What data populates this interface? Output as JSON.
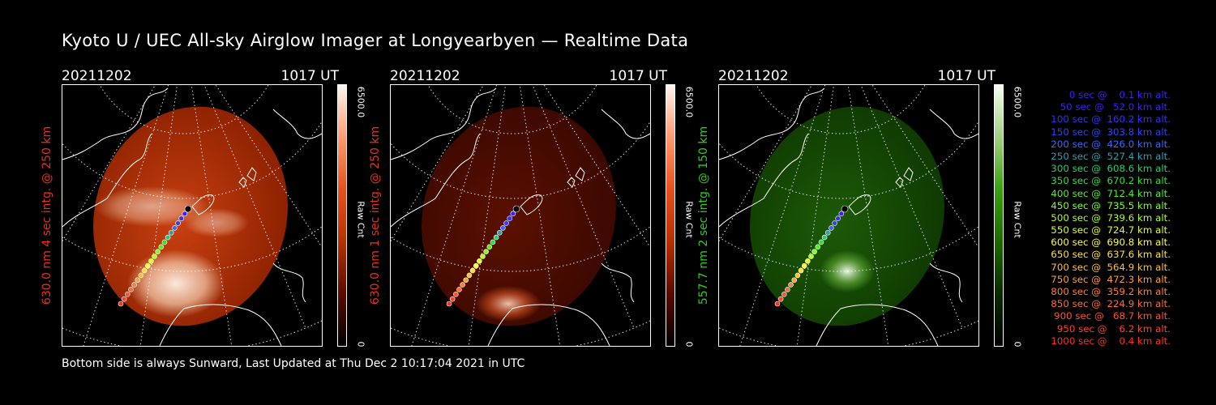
{
  "title": "Kyoto U / UEC All-sky Airglow Imager at Longyearbyen — Realtime Data",
  "footer": "Bottom side is always Sunward, Last Updated at Thu Dec  2 10:17:04 2021 in UTC",
  "panels": [
    {
      "date": "20211202",
      "time": "1017 UT",
      "ylabel": "630.0 nm 4 sec intg. @ 250 km",
      "label_color": "#e8301c",
      "cbar_max": "6500.0",
      "cbar_min": "0",
      "cbar_unit": "Raw Cnt",
      "colormap": "red-bright"
    },
    {
      "date": "20211202",
      "time": "1017 UT",
      "ylabel": "630.0 nm 1 sec intg. @ 250 km",
      "label_color": "#e8301c",
      "cbar_max": "6500.0",
      "cbar_min": "0",
      "cbar_unit": "Raw Cnt",
      "colormap": "red-dark"
    },
    {
      "date": "20211202",
      "time": "1017 UT",
      "ylabel": "557.7 nm 2 sec intg. @ 150 km",
      "label_color": "#2ecc1f",
      "cbar_max": "6500.0",
      "cbar_min": "0",
      "cbar_unit": "Raw Cnt",
      "colormap": "green"
    }
  ],
  "legend": [
    {
      "text": "   0 sec @    0.1 km alt.",
      "color": "#3a20ff"
    },
    {
      "text": "  50 sec @   52.0 km alt.",
      "color": "#3a20ff"
    },
    {
      "text": " 100 sec @  160.2 km alt.",
      "color": "#3030ff"
    },
    {
      "text": " 150 sec @  303.8 km alt.",
      "color": "#3040ff"
    },
    {
      "text": " 200 sec @  426.0 km alt.",
      "color": "#3868ff"
    },
    {
      "text": " 250 sec @  527.4 km alt.",
      "color": "#2aa0b0"
    },
    {
      "text": " 300 sec @  608.6 km alt.",
      "color": "#20d070"
    },
    {
      "text": " 350 sec @  670.2 km alt.",
      "color": "#30e030"
    },
    {
      "text": " 400 sec @  712.4 km alt.",
      "color": "#50f020"
    },
    {
      "text": " 450 sec @  735.5 km alt.",
      "color": "#80ff20"
    },
    {
      "text": " 500 sec @  739.6 km alt.",
      "color": "#b0ff20"
    },
    {
      "text": " 550 sec @  724.7 km alt.",
      "color": "#e0ff20"
    },
    {
      "text": " 600 sec @  690.8 km alt.",
      "color": "#ffff30"
    },
    {
      "text": " 650 sec @  637.6 km alt.",
      "color": "#ffe030"
    },
    {
      "text": " 700 sec @  564.9 km alt.",
      "color": "#ffc030"
    },
    {
      "text": " 750 sec @  472.3 km alt.",
      "color": "#ffa030"
    },
    {
      "text": " 800 sec @  359.2 km alt.",
      "color": "#ff8030"
    },
    {
      "text": " 850 sec @  224.9 km alt.",
      "color": "#ff6a30"
    },
    {
      "text": " 900 sec @   68.7 km alt.",
      "color": "#ff5030"
    },
    {
      "text": " 950 sec @    6.2 km alt.",
      "color": "#ff4030"
    },
    {
      "text": "1000 sec @    0.4 km alt.",
      "color": "#ff3020"
    }
  ]
}
